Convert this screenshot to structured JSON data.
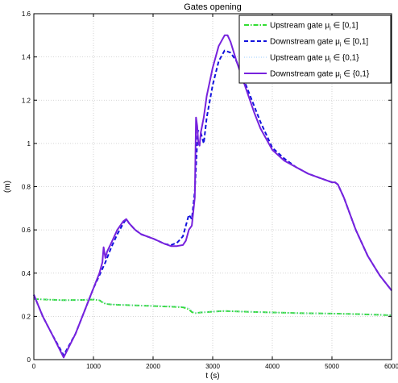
{
  "chart_data": {
    "type": "line",
    "title": "Gates opening",
    "xlabel": "t (s)",
    "ylabel": "(m)",
    "xlim": [
      0,
      6000
    ],
    "ylim": [
      0,
      1.6
    ],
    "xticks": [
      0,
      1000,
      2000,
      3000,
      4000,
      5000,
      6000
    ],
    "yticks": [
      0,
      0.2,
      0.4,
      0.6,
      0.8,
      1,
      1.2,
      1.4,
      1.6
    ],
    "grid": true,
    "legend_position": "top-right",
    "series": [
      {
        "name": "Upstream gate  μ_i ∈ [0,1]",
        "name_main": "Upstream gate  μ",
        "name_sub": "i",
        "name_rest": " ∈ [0,1]",
        "color": "#33dd33",
        "style": "dashdot",
        "x": [
          0,
          200,
          500,
          800,
          1000,
          1100,
          1150,
          1200,
          1300,
          1500,
          1700,
          1900,
          2100,
          2300,
          2500,
          2550,
          2600,
          2650,
          2700,
          2800,
          3000,
          3200,
          3500,
          4000,
          4500,
          5000,
          5500,
          6000
        ],
        "y": [
          0.28,
          0.278,
          0.275,
          0.276,
          0.278,
          0.275,
          0.265,
          0.258,
          0.255,
          0.253,
          0.251,
          0.249,
          0.247,
          0.245,
          0.242,
          0.238,
          0.232,
          0.22,
          0.215,
          0.218,
          0.222,
          0.225,
          0.222,
          0.218,
          0.215,
          0.213,
          0.21,
          0.205
        ]
      },
      {
        "name": "Downstream gate  μ_i ∈ [0,1]",
        "name_main": "Downstream gate  μ",
        "name_sub": "i",
        "name_rest": " ∈ [0,1]",
        "color": "#1111dd",
        "style": "dashed",
        "x": [
          0,
          150,
          300,
          500,
          700,
          900,
          1000,
          1100,
          1200,
          1300,
          1400,
          1500,
          1550,
          1600,
          1700,
          1800,
          2000,
          2200,
          2300,
          2400,
          2500,
          2550,
          2600,
          2650,
          2700,
          2750,
          2800,
          2850,
          2900,
          3000,
          3100,
          3200,
          3300,
          3400,
          3500,
          3600,
          3700,
          3800,
          3900,
          4000,
          4200,
          4400,
          4600,
          4800,
          5000,
          5050,
          5100,
          5200,
          5400,
          5600,
          5800,
          6000
        ],
        "y": [
          0.3,
          0.2,
          0.12,
          0.02,
          0.12,
          0.26,
          0.33,
          0.39,
          0.45,
          0.52,
          0.58,
          0.63,
          0.65,
          0.63,
          0.6,
          0.58,
          0.56,
          0.535,
          0.53,
          0.54,
          0.57,
          0.62,
          0.67,
          0.65,
          0.78,
          1.06,
          1.05,
          1.0,
          1.12,
          1.27,
          1.38,
          1.43,
          1.42,
          1.38,
          1.31,
          1.24,
          1.17,
          1.1,
          1.04,
          0.98,
          0.93,
          0.89,
          0.86,
          0.84,
          0.82,
          0.82,
          0.81,
          0.75,
          0.6,
          0.48,
          0.39,
          0.32
        ]
      },
      {
        "name": "Upstream gate  μ_i ∈ {0,1}",
        "name_main": "Upstream gate  μ",
        "name_sub": "i",
        "name_rest": " ∈ {0,1}",
        "color": "#99ccff",
        "style": "dotted",
        "x": [
          0,
          200,
          500,
          800,
          1000,
          1100,
          1150,
          1200,
          1300,
          1500,
          1700,
          1900,
          2100,
          2300,
          2500,
          2550,
          2600,
          2650,
          2700,
          2800,
          3000,
          3200,
          3500,
          4000,
          4500,
          5000,
          5500,
          6000
        ],
        "y": [
          0.28,
          0.278,
          0.275,
          0.276,
          0.28,
          0.277,
          0.268,
          0.26,
          0.256,
          0.254,
          0.252,
          0.25,
          0.249,
          0.247,
          0.245,
          0.243,
          0.24,
          0.228,
          0.216,
          0.219,
          0.222,
          0.225,
          0.222,
          0.218,
          0.215,
          0.213,
          0.21,
          0.205
        ]
      },
      {
        "name": "Downstream gate  μ_i ∈ {0,1}",
        "name_main": "Downstream gate  μ",
        "name_sub": "i",
        "name_rest": " ∈ {0,1}",
        "color": "#7722dd",
        "style": "solid",
        "x": [
          0,
          150,
          300,
          500,
          700,
          900,
          1000,
          1100,
          1150,
          1170,
          1200,
          1230,
          1300,
          1400,
          1500,
          1550,
          1600,
          1700,
          1800,
          2000,
          2200,
          2300,
          2400,
          2500,
          2550,
          2600,
          2650,
          2700,
          2720,
          2740,
          2760,
          2780,
          2800,
          2850,
          2900,
          3000,
          3100,
          3200,
          3250,
          3300,
          3400,
          3500,
          3600,
          3700,
          3800,
          3900,
          4000,
          4200,
          4400,
          4600,
          4800,
          5000,
          5050,
          5100,
          5200,
          5400,
          5600,
          5800,
          6000
        ],
        "y": [
          0.3,
          0.2,
          0.12,
          0.01,
          0.12,
          0.26,
          0.33,
          0.4,
          0.45,
          0.52,
          0.47,
          0.5,
          0.54,
          0.6,
          0.64,
          0.65,
          0.63,
          0.6,
          0.58,
          0.56,
          0.535,
          0.525,
          0.525,
          0.53,
          0.55,
          0.6,
          0.62,
          0.75,
          1.12,
          1.08,
          1.0,
          0.99,
          1.05,
          1.12,
          1.22,
          1.35,
          1.45,
          1.5,
          1.5,
          1.47,
          1.38,
          1.3,
          1.22,
          1.14,
          1.07,
          1.02,
          0.97,
          0.92,
          0.89,
          0.86,
          0.84,
          0.82,
          0.82,
          0.81,
          0.75,
          0.6,
          0.48,
          0.39,
          0.32
        ]
      }
    ]
  }
}
